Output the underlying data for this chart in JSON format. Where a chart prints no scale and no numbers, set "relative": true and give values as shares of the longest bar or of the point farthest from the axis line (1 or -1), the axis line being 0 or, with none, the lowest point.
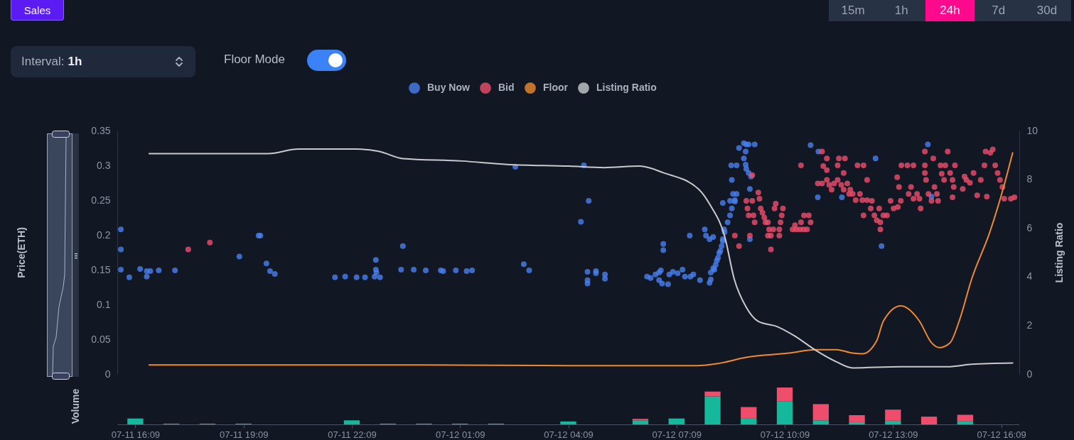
{
  "chart_data": [
    {
      "type": "scatter",
      "legend": "top",
      "annotations": [
        "Sales",
        "15m",
        "1h",
        "24h",
        "7d",
        "30d",
        "Interval:",
        "1h",
        "Floor Mode"
      ],
      "ylabel": "Price(ETH)",
      "y2label": "Listing Ratio",
      "xlim": [
        "--07-11T15:39",
        "--07-12T16:39"
      ],
      "ylim": [
        0,
        0.35
      ],
      "yticks": [
        0,
        0.05,
        0.1,
        0.15,
        0.2,
        0.25,
        0.3,
        0.35
      ],
      "y2lim": [
        0,
        10
      ],
      "y2ticks": [
        0,
        2,
        4,
        6,
        8,
        10
      ],
      "tick_labels": "yy2",
      "series": [
        {
          "name": "Buy Now",
          "marker": "circle",
          "color": "#4a80ee",
          "x": [
            "--07-11T15:45",
            "--07-11T15:45",
            "--07-11T15:45",
            "--07-11T15:59",
            "--07-11T16:17",
            "--07-11T16:28",
            "--07-11T16:28",
            "--07-11T16:34",
            "--07-11T16:48",
            "--07-11T17:15",
            "--07-11T19:02",
            "--07-11T19:34",
            "--07-11T19:37",
            "--07-11T19:47",
            "--07-11T19:53",
            "--07-11T20:01",
            "--07-11T21:41",
            "--07-11T21:58",
            "--07-11T22:17",
            "--07-11T22:31",
            "--07-11T22:49",
            "--07-11T22:49",
            "--07-11T22:50",
            "--07-11T22:47",
            "--07-11T22:56",
            "--07-11T23:34",
            "--07-11T23:31",
            "--07-11T23:52",
            "--07-12T00:12",
            "--07-12T00:37",
            "--07-12T00:41",
            "--07-12T01:02",
            "--07-12T01:20",
            "--07-12T01:29",
            "--07-12T02:41",
            "--07-12T02:55",
            "--07-12T03:04",
            "--07-12T04:35",
            "--07-12T04:43",
            "--07-12T04:30",
            "--07-12T04:41",
            "--07-12T04:41",
            "--07-12T04:41",
            "--07-12T04:55",
            "--07-12T04:55",
            "--07-12T05:10",
            "--07-12T05:10",
            "--07-12T06:47",
            "--07-12T06:47",
            "--07-12T06:20",
            "--07-12T06:26",
            "--07-12T06:34",
            "--07-12T06:40",
            "--07-12T06:43",
            "--07-12T06:40",
            "--07-12T06:45",
            "--07-12T06:55",
            "--07-12T06:57",
            "--07-12T07:03",
            "--07-12T07:11",
            "--07-12T07:19",
            "--07-12T07:23",
            "--07-12T07:31",
            "--07-12T07:32",
            "--07-12T07:37",
            "--07-12T07:48",
            "--07-12T07:56",
            "--07-12T07:58",
            "--07-12T08:04",
            "--07-12T08:10",
            "--07-12T08:04",
            "--07-12T08:06",
            "--07-12T08:10",
            "--07-12T08:14",
            "--07-12T08:18",
            "--07-12T08:20",
            "--07-12T08:24",
            "--07-12T08:26",
            "--07-12T08:28",
            "--07-12T08:26",
            "--07-12T08:06",
            "--07-12T08:12",
            "--07-12T08:16",
            "--07-12T08:22",
            "--07-12T08:26",
            "--07-12T08:29",
            "--07-12T08:34",
            "--07-12T08:38",
            "--07-12T08:41",
            "--07-12T08:46",
            "--07-12T08:49",
            "--07-12T08:40",
            "--07-12T08:49",
            "--07-12T08:53",
            "--07-12T09:01",
            "--07-12T09:05",
            "--07-12T09:09",
            "--07-12T09:19",
            "--07-12T09:04",
            "--07-12T09:01",
            "--07-12T09:04",
            "--07-12T09:05",
            "--07-12T09:09",
            "--07-12T09:13",
            "--07-12T08:41",
            "--07-12T08:43",
            "--07-12T08:38",
            "--07-12T08:46",
            "--07-12T09:11",
            "--07-12T09:11",
            "--07-12T10:52",
            "--07-12T11:05",
            "--07-12T11:04",
            "--07-12T11:44",
            "--07-12T12:40",
            "--07-12T12:50",
            "--07-12T14:07",
            "--07-12T14:13"
          ],
          "values": [
            0.208,
            0.179,
            0.15,
            0.139,
            0.151,
            0.148,
            0.14,
            0.148,
            0.149,
            0.149,
            0.169,
            0.199,
            0.199,
            0.159,
            0.148,
            0.144,
            0.139,
            0.14,
            0.139,
            0.139,
            0.164,
            0.15,
            0.146,
            0.14,
            0.139,
            0.184,
            0.15,
            0.15,
            0.149,
            0.149,
            0.148,
            0.149,
            0.148,
            0.149,
            0.298,
            0.158,
            0.149,
            0.3,
            0.249,
            0.219,
            0.147,
            0.135,
            0.13,
            0.148,
            0.145,
            0.143,
            0.137,
            0.187,
            0.178,
            0.14,
            0.138,
            0.143,
            0.146,
            0.149,
            0.135,
            0.13,
            0.129,
            0.143,
            0.147,
            0.145,
            0.15,
            0.14,
            0.199,
            0.14,
            0.143,
            0.135,
            0.208,
            0.199,
            0.194,
            0.197,
            0.131,
            0.146,
            0.152,
            0.157,
            0.167,
            0.174,
            0.184,
            0.194,
            0.208,
            0.246,
            0.136,
            0.15,
            0.163,
            0.177,
            0.191,
            0.204,
            0.218,
            0.228,
            0.238,
            0.248,
            0.259,
            0.3,
            0.3,
            0.325,
            0.332,
            0.33,
            0.33,
            0.33,
            0.32,
            0.31,
            0.301,
            0.295,
            0.289,
            0.284,
            0.279,
            0.259,
            0.249,
            0.25,
            0.266,
            0.194,
            0.329,
            0.32,
            0.254,
            0.254,
            0.31,
            0.184,
            0.33,
            0.255
          ]
        },
        {
          "name": "Bid",
          "marker": "circle",
          "color": "#ee4d6c",
          "x": [
            "--07-11T17:37",
            "--07-11T18:13",
            "--07-12T09:05",
            "--07-12T09:07",
            "--07-12T09:09",
            "--07-12T09:15",
            "--07-12T09:17",
            "--07-12T09:19",
            "--07-12T09:25",
            "--07-12T09:27",
            "--07-12T09:29",
            "--07-12T09:32",
            "--07-12T09:35",
            "--07-12T09:37",
            "--07-12T09:41",
            "--07-12T09:43",
            "--07-12T09:41",
            "--07-12T09:46",
            "--07-12T09:50",
            "--07-12T09:52",
            "--07-12T09:54",
            "--07-12T10:00",
            "--07-12T10:02",
            "--07-12T10:04",
            "--07-12T10:06",
            "--07-12T10:00",
            "--07-12T08:46",
            "--07-12T08:53",
            "--07-12T09:46",
            "--07-12T09:11",
            "--07-12T09:15",
            "--07-12T10:22",
            "--07-12T10:28",
            "--07-12T10:34",
            "--07-12T10:40",
            "--07-12T10:46",
            "--07-12T10:26",
            "--07-12T10:36",
            "--07-12T10:41",
            "--07-12T10:49",
            "--07-12T10:52",
            "--07-12T10:36",
            "--07-12T11:11",
            "--07-12T11:19",
            "--07-12T11:39",
            "--07-12T11:49",
            "--07-12T11:04",
            "--07-12T11:11",
            "--07-12T11:19",
            "--07-12T11:23",
            "--07-12T11:27",
            "--07-12T11:31",
            "--07-12T11:37",
            "--07-12T11:43",
            "--07-12T11:47",
            "--07-12T11:53",
            "--07-12T11:58",
            "--07-12T11:56",
            "--07-12T12:02",
            "--07-12T12:07",
            "--07-12T12:14",
            "--07-12T12:18",
            "--07-12T12:26",
            "--07-12T12:34",
            "--07-12T11:13",
            "--07-12T11:19",
            "--07-12T11:37",
            "--07-12T11:47",
            "--07-12T12:10",
            "--07-12T12:20",
            "--07-12T12:26",
            "--07-12T12:20",
            "--07-12T12:32",
            "--07-12T12:38",
            "--07-12T12:42",
            "--07-12T12:48",
            "--07-12T12:48",
            "--07-12T12:53",
            "--07-12T12:59",
            "--07-12T12:46",
            "--07-12T13:05",
            "--07-12T13:10",
            "--07-12T13:17",
            "--07-12T13:22",
            "--07-12T13:16",
            "--07-12T13:19",
            "--07-12T13:23",
            "--07-12T13:33",
            "--07-12T13:35",
            "--07-12T13:39",
            "--07-12T13:43",
            "--07-12T13:43",
            "--07-12T13:49",
            "--07-12T13:55",
            "--07-12T13:53",
            "--07-12T14:02",
            "--07-12T14:02",
            "--07-12T14:02",
            "--07-12T14:04",
            "--07-12T14:08",
            "--07-12T14:13",
            "--07-12T14:16",
            "--07-12T14:18",
            "--07-12T14:22",
            "--07-12T14:24",
            "--07-12T14:28",
            "--07-12T14:30",
            "--07-12T14:34",
            "--07-12T14:36",
            "--07-12T14:40",
            "--07-12T14:44",
            "--07-12T14:48",
            "--07-12T14:52",
            "--07-12T14:50",
            "--07-12T14:48",
            "--07-12T15:05",
            "--07-12T15:08",
            "--07-12T15:11",
            "--07-12T15:17",
            "--07-12T15:23",
            "--07-12T15:29",
            "--07-12T15:35",
            "--07-12T15:41",
            "--07-12T15:43",
            "--07-12T15:45",
            "--07-12T15:51",
            "--07-12T15:55",
            "--07-12T15:59",
            "--07-12T16:03",
            "--07-12T16:07",
            "--07-12T16:11",
            "--07-12T16:14",
            "--07-12T16:25",
            "--07-12T16:31"
          ],
          "values": [
            0.179,
            0.189,
            0.249,
            0.238,
            0.228,
            0.249,
            0.228,
            0.218,
            0.261,
            0.252,
            0.238,
            0.232,
            0.225,
            0.218,
            0.218,
            0.208,
            0.199,
            0.199,
            0.208,
            0.238,
            0.245,
            0.208,
            0.218,
            0.228,
            0.238,
            0.199,
            0.199,
            0.184,
            0.179,
            0.199,
            0.286,
            0.208,
            0.208,
            0.208,
            0.208,
            0.208,
            0.214,
            0.218,
            0.228,
            0.228,
            0.218,
            0.3,
            0.32,
            0.31,
            0.31,
            0.31,
            0.274,
            0.274,
            0.279,
            0.272,
            0.265,
            0.274,
            0.279,
            0.272,
            0.265,
            0.274,
            0.265,
            0.259,
            0.259,
            0.25,
            0.259,
            0.25,
            0.25,
            0.249,
            0.299,
            0.293,
            0.3,
            0.289,
            0.3,
            0.3,
            0.279,
            0.228,
            0.238,
            0.228,
            0.221,
            0.218,
            0.208,
            0.228,
            0.228,
            0.238,
            0.249,
            0.238,
            0.24,
            0.249,
            0.283,
            0.269,
            0.3,
            0.3,
            0.259,
            0.269,
            0.3,
            0.252,
            0.259,
            0.238,
            0.252,
            0.32,
            0.3,
            0.289,
            0.279,
            0.259,
            0.249,
            0.31,
            0.269,
            0.259,
            0.249,
            0.3,
            0.288,
            0.279,
            0.3,
            0.32,
            0.289,
            0.279,
            0.3,
            0.269,
            0.254,
            0.266,
            0.284,
            0.279,
            0.275,
            0.289,
            0.257,
            0.279,
            0.3,
            0.32,
            0.255,
            0.318,
            0.323,
            0.3,
            0.289,
            0.279,
            0.269,
            0.252,
            0.252,
            0.254
          ]
        },
        {
          "name": "Floor",
          "type": "line",
          "color": "#f08a2e",
          "x": [
            "--07-11T16:32",
            "--07-11T20:17",
            "--07-12T00:13",
            "--07-12T04:10",
            "--07-12T07:43",
            "--07-12T08:18",
            "--07-12T09:05",
            "--07-12T10:16",
            "--07-12T11:00",
            "--07-12T11:35",
            "--07-12T12:02",
            "--07-12T12:18",
            "--07-12T12:42",
            "--07-12T12:53",
            "--07-12T13:22",
            "--07-12T13:53",
            "--07-12T14:13",
            "--07-12T14:26",
            "--07-12T14:44",
            "--07-12T14:59",
            "--07-12T15:20",
            "--07-12T15:50",
            "--07-12T16:14",
            "--07-12T16:28"
          ],
          "values": [
            0.013,
            0.013,
            0.013,
            0.012,
            0.012,
            0.015,
            0.024,
            0.03,
            0.035,
            0.035,
            0.03,
            0.029,
            0.048,
            0.076,
            0.098,
            0.076,
            0.045,
            0.038,
            0.045,
            0.076,
            0.137,
            0.204,
            0.272,
            0.318
          ]
        },
        {
          "name": "Listing Ratio",
          "type": "line",
          "axis": "y2",
          "color": "#c8cacd",
          "x": [
            "--07-11T16:32",
            "--07-11T19:50",
            "--07-11T20:40",
            "--07-11T22:15",
            "--07-11T22:54",
            "--07-11T23:34",
            "--07-12T01:12",
            "--07-12T02:27",
            "--07-12T04:10",
            "--07-12T05:09",
            "--07-12T06:08",
            "--07-12T06:47",
            "--07-12T07:46",
            "--07-12T08:06",
            "--07-12T08:29",
            "--07-12T08:45",
            "--07-12T09:05",
            "--07-12T09:25",
            "--07-12T09:56",
            "--07-12T10:25",
            "--07-12T11:00",
            "--07-12T11:35",
            "--07-12T12:02",
            "--07-12T13:22",
            "--07-12T14:40",
            "--07-12T15:20",
            "--07-12T16:28"
          ],
          "values": [
            9.05,
            9.05,
            9.24,
            9.24,
            9.15,
            8.85,
            8.75,
            8.61,
            8.54,
            8.48,
            8.54,
            8.27,
            7.59,
            6.9,
            5.66,
            3.9,
            2.74,
            2.16,
            1.95,
            1.57,
            0.98,
            0.5,
            0.25,
            0.3,
            0.3,
            0.4,
            0.45
          ]
        }
      ]
    },
    {
      "type": "bar",
      "stacked": true,
      "relative": true,
      "ylabel": "Volume",
      "tick_labels": "x",
      "xlim": [
        "--07-11T15:39",
        "--07-12T16:39"
      ],
      "x": [
        "--07-11T16:09",
        "--07-11T17:09",
        "--07-11T18:09",
        "--07-11T19:09",
        "--07-11T20:09",
        "--07-11T21:09",
        "--07-11T22:09",
        "--07-11T23:09",
        "--07-12T00:09",
        "--07-12T01:09",
        "--07-12T02:09",
        "--07-12T03:09",
        "--07-12T04:09",
        "--07-12T05:09",
        "--07-12T06:09",
        "--07-12T07:09",
        "--07-12T08:09",
        "--07-12T09:09",
        "--07-12T10:09",
        "--07-12T11:09",
        "--07-12T12:09",
        "--07-12T13:09",
        "--07-12T14:09",
        "--07-12T15:09"
      ],
      "xticks": [
        {
          "value": "--07-11T16:09",
          "label": "07-11 16:09"
        },
        {
          "value": "--07-11T19:09",
          "label": "07-11 19:09"
        },
        {
          "value": "--07-11T22:09",
          "label": "07-11 22:09"
        },
        {
          "value": "--07-12T01:09",
          "label": "07-12 01:09"
        },
        {
          "value": "--07-12T04:09",
          "label": "07-12 04:09"
        },
        {
          "value": "--07-12T07:09",
          "label": "07-12 07:09"
        },
        {
          "value": "--07-12T10:09",
          "label": "07-12 10:09"
        },
        {
          "value": "--07-12T13:09",
          "label": "07-12 13:09"
        },
        {
          "value": "--07-12T16:09",
          "label": "07-12 16:09"
        }
      ],
      "series": [
        {
          "color": "#16b89c",
          "values": [
            0.16,
            null,
            null,
            0.02,
            null,
            null,
            0.11,
            0.02,
            0.02,
            0.02,
            0.02,
            null,
            0.08,
            null,
            0.11,
            0.16,
            0.76,
            0.17,
            0.63,
            0.11,
            0.06,
            0.1,
            null,
            0.08
          ]
        },
        {
          "color": "#ee4d6c",
          "values": [
            null,
            0.02,
            0.02,
            null,
            null,
            null,
            null,
            null,
            null,
            null,
            null,
            null,
            null,
            null,
            0.04,
            null,
            0.13,
            0.3,
            0.37,
            0.44,
            0.19,
            0.3,
            0.21,
            0.18
          ]
        }
      ]
    }
  ]
}
